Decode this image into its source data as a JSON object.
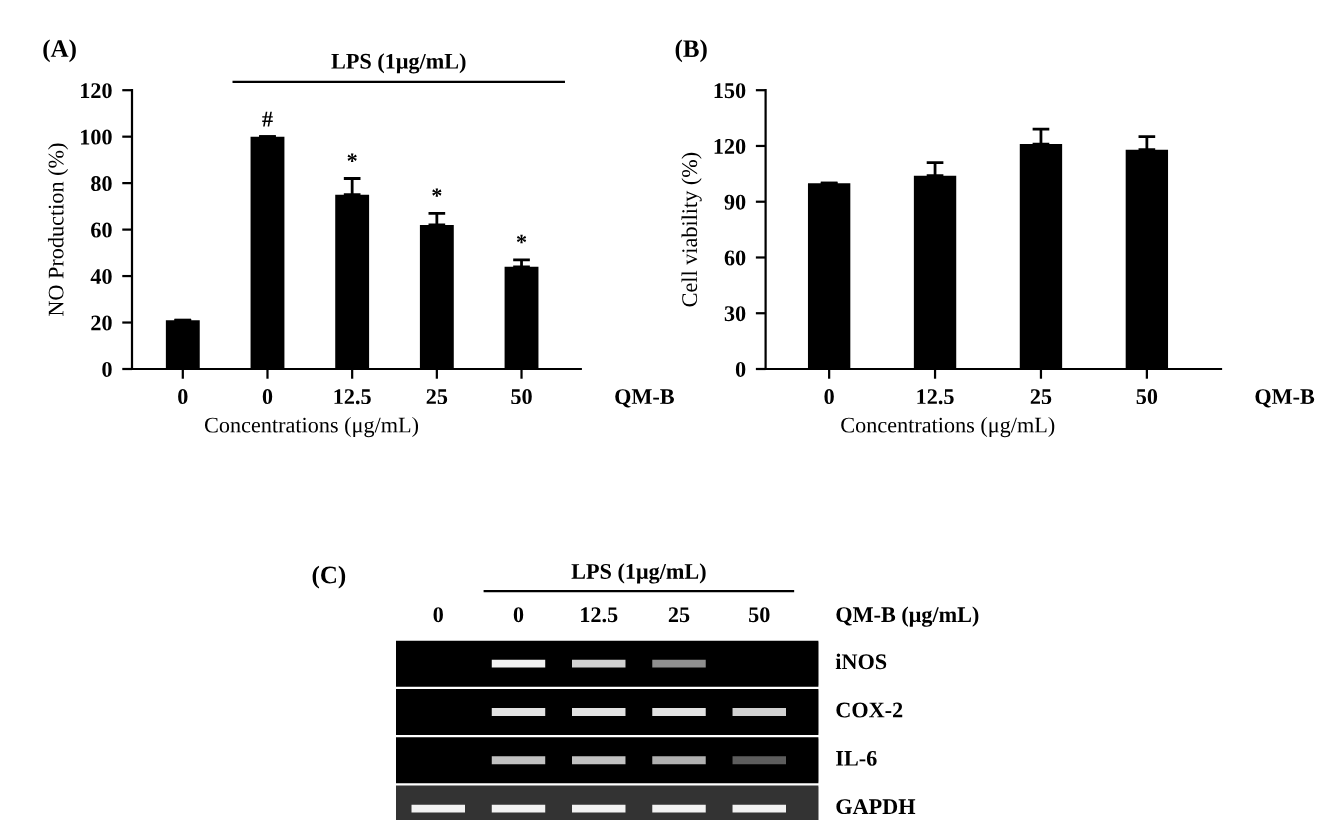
{
  "chart_data": [
    {
      "type": "bar",
      "title": "(A)",
      "xlabel": "Concentrations (μg/mL)",
      "ylabel": "NO Production (%)",
      "categories": [
        "0",
        "0",
        "12.5",
        "25",
        "50"
      ],
      "values": [
        21,
        100,
        75,
        62,
        44
      ],
      "errors": [
        null,
        null,
        7,
        5,
        3
      ],
      "color": "#000000",
      "ylim": [
        0,
        120
      ],
      "yticks": [
        0,
        20,
        40,
        60,
        80,
        100,
        120
      ],
      "grid": false,
      "annotations": [
        "LPS (1μg/mL)",
        "QM-B",
        "#",
        {
          "text": "*",
          "x": "12.5",
          "y": 82
        },
        {
          "text": "*",
          "x": "25",
          "y": 67
        },
        {
          "text": "*",
          "x": "50",
          "y": 47
        }
      ]
    },
    {
      "type": "bar",
      "title": "(B)",
      "xlabel": "Concentrations (μg/mL)",
      "ylabel": "Cell viability (%)",
      "categories": [
        "0",
        "12.5",
        "25",
        "50"
      ],
      "values": [
        100,
        104,
        121,
        118
      ],
      "errors": [
        null,
        7,
        8,
        7
      ],
      "color": "#000000",
      "ylim": [
        0,
        150
      ],
      "yticks": [
        0,
        30,
        60,
        90,
        120,
        150
      ],
      "grid": false,
      "annotations": [
        "QM-B"
      ]
    },
    {
      "type": "other",
      "title": "(C)",
      "annotations": [
        "LPS (1μg/mL)",
        "0",
        "0",
        "12.5",
        "25",
        "50",
        "QM-B (μg/mL)",
        "iNOS",
        "COX-2",
        "IL-6",
        "GAPDH"
      ]
    }
  ]
}
